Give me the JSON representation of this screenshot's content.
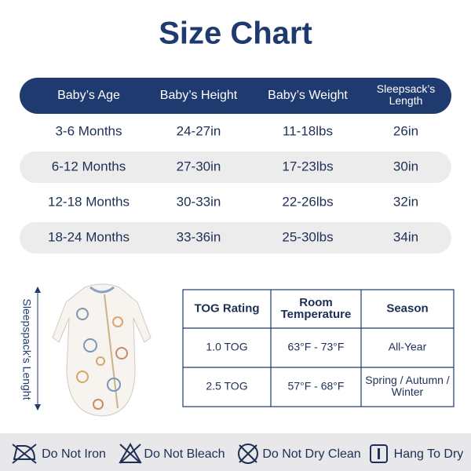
{
  "title": "Size Chart",
  "size_table": {
    "headers": [
      "Baby’s Age",
      "Baby’s Height",
      "Baby’s Weight",
      [
        "Sleepsack’s",
        "Length"
      ]
    ],
    "rows": [
      [
        "3-6 Months",
        "24-27in",
        "11-18lbs",
        "26in"
      ],
      [
        "6-12 Months",
        "27-30in",
        "17-23lbs",
        "30in"
      ],
      [
        "12-18 Months",
        "30-33in",
        "22-26lbs",
        "32in"
      ],
      [
        "18-24 Months",
        "33-36in",
        "25-30lbs",
        "34in"
      ]
    ]
  },
  "image_label": "Sleepspack’s Lenght",
  "tog_table": {
    "headers": [
      "TOG Rating",
      [
        "Room",
        "Temperature"
      ],
      "Season"
    ],
    "rows": [
      [
        "1.0 TOG",
        "63°F - 73°F",
        "All-Year"
      ],
      [
        "2.5 TOG",
        "57°F - 68°F",
        [
          "Spring / Autumn /",
          "Winter"
        ]
      ]
    ]
  },
  "care": [
    "Do Not Iron",
    "Do Not Bleach",
    "Do Not Dry Clean",
    "Hang To Dry"
  ]
}
